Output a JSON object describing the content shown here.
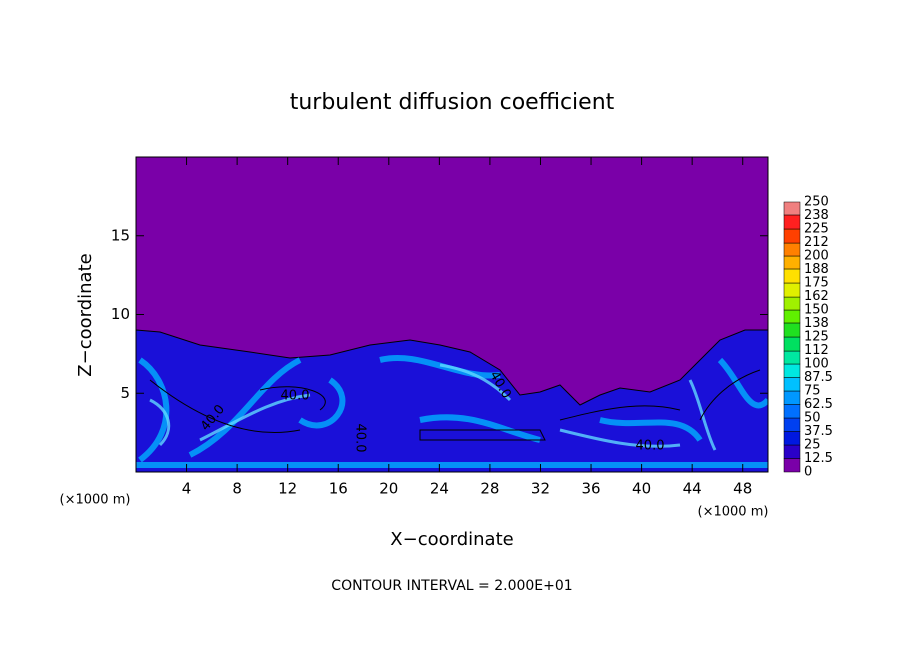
{
  "chart_data": {
    "type": "contour",
    "title": "turbulent diffusion coefficient",
    "xlabel": "X−coordinate",
    "ylabel": "Z−coordinate",
    "x_unit_labels": [
      "(×1000 m)",
      "(×1000 m)"
    ],
    "footer": "CONTOUR INTERVAL = 2.000E+01",
    "contour_labels": [
      "40.0",
      "40.0",
      "40.0",
      "40.0",
      "40.0"
    ],
    "xlim": [
      0,
      50
    ],
    "xticks": [
      4,
      8,
      12,
      16,
      20,
      24,
      28,
      32,
      36,
      40,
      44,
      48
    ],
    "ylim": [
      0,
      20
    ],
    "yticks": [
      5,
      10,
      15
    ],
    "grid": false,
    "colorbar": {
      "levels": [
        0,
        12.5,
        25,
        37.5,
        50,
        62.5,
        75,
        87.5,
        100,
        112,
        125,
        138,
        150,
        162,
        175,
        188,
        200,
        212,
        225,
        238,
        250
      ],
      "colors": [
        "#7a00a8",
        "#2a00c8",
        "#0018e0",
        "#0040f0",
        "#0070ff",
        "#0098ff",
        "#00c0ff",
        "#00e8e0",
        "#00e8a0",
        "#00e060",
        "#20e020",
        "#60f000",
        "#a0f000",
        "#e0f000",
        "#ffe000",
        "#ffb000",
        "#ff8000",
        "#ff4000",
        "#ff2020",
        "#f08080"
      ]
    }
  }
}
